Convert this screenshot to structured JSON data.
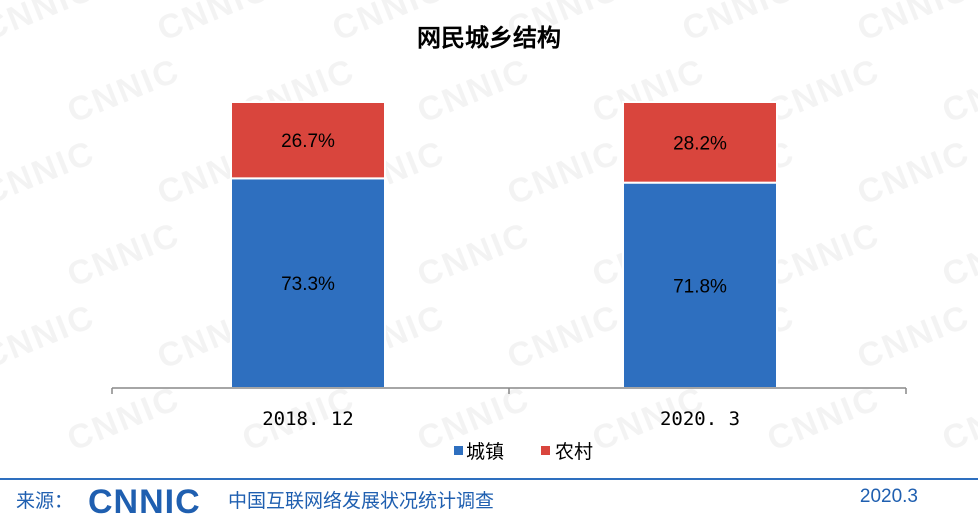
{
  "chart_data": {
    "type": "bar",
    "stacked": true,
    "title": "网民城乡结构",
    "categories": [
      "2018. 12",
      "2020. 3"
    ],
    "series": [
      {
        "name": "城镇",
        "values": [
          73.3,
          71.8
        ],
        "labels": [
          "73.3%",
          "71.8%"
        ],
        "color": "#2e6fbf"
      },
      {
        "name": "农村",
        "values": [
          26.7,
          28.2
        ],
        "labels": [
          "26.7%",
          "28.2%"
        ],
        "color": "#d9453d"
      }
    ],
    "ylim": [
      0,
      100
    ],
    "grid": false,
    "legend_position": "bottom"
  },
  "watermark_text": "CNNIC",
  "footer": {
    "source_label": "来源：",
    "logo_text": "CNNIC",
    "organization": "中国互联网络发展状况统计调查",
    "date": "2020.3"
  },
  "colors": {
    "brand_blue": "#1f5fb0",
    "urban": "#2e6fbf",
    "rural": "#d9453d"
  }
}
